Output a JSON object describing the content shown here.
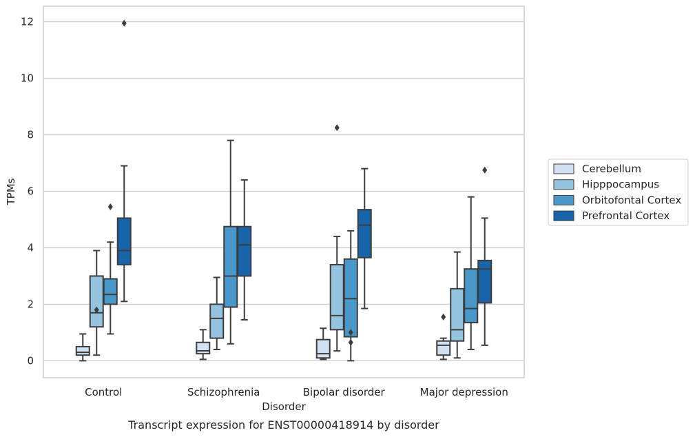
{
  "caption": "Transcript expression for ENST00000418914 by disorder",
  "chart_data": {
    "type": "box",
    "xlabel": "Disorder",
    "ylabel": "TPMs",
    "ylim": [
      -0.6,
      12.55
    ],
    "yticks": [
      0,
      2,
      4,
      6,
      8,
      10,
      12
    ],
    "grid": "horizontal",
    "legend_position": "right",
    "categories": [
      "Control",
      "Schizophrenia",
      "Bipolar disorder",
      "Major depression"
    ],
    "series": [
      {
        "name": "Cerebellum",
        "color": "#d0e1f2",
        "boxes": [
          {
            "whislo": 0.0,
            "q1": 0.2,
            "med": 0.3,
            "q3": 0.5,
            "whishi": 0.95,
            "fliers": []
          },
          {
            "whislo": 0.05,
            "q1": 0.25,
            "med": 0.35,
            "q3": 0.65,
            "whishi": 1.1,
            "fliers": []
          },
          {
            "whislo": 0.05,
            "q1": 0.1,
            "med": 0.25,
            "q3": 0.75,
            "whishi": 1.15,
            "fliers": []
          },
          {
            "whislo": 0.05,
            "q1": 0.2,
            "med": 0.55,
            "q3": 0.7,
            "whishi": 0.8,
            "fliers": [
              1.55
            ]
          }
        ]
      },
      {
        "name": "Hipppocampus",
        "color": "#94c4df",
        "boxes": [
          {
            "whislo": 0.2,
            "q1": 1.2,
            "med": 1.7,
            "q3": 3.0,
            "whishi": 3.9,
            "fliers": [
              1.8
            ]
          },
          {
            "whislo": 0.4,
            "q1": 0.8,
            "med": 1.5,
            "q3": 2.0,
            "whishi": 2.95,
            "fliers": []
          },
          {
            "whislo": 0.35,
            "q1": 1.1,
            "med": 1.6,
            "q3": 3.4,
            "whishi": 4.4,
            "fliers": [
              8.25
            ]
          },
          {
            "whislo": 0.1,
            "q1": 0.7,
            "med": 1.1,
            "q3": 2.55,
            "whishi": 3.85,
            "fliers": []
          }
        ]
      },
      {
        "name": "Orbitofontal Cortex",
        "color": "#4a98c9",
        "boxes": [
          {
            "whislo": 0.95,
            "q1": 2.0,
            "med": 2.35,
            "q3": 2.9,
            "whishi": 4.2,
            "fliers": [
              5.45
            ]
          },
          {
            "whislo": 0.6,
            "q1": 1.9,
            "med": 3.0,
            "q3": 4.75,
            "whishi": 7.8,
            "fliers": []
          },
          {
            "whislo": 0.0,
            "q1": 0.85,
            "med": 2.2,
            "q3": 3.6,
            "whishi": 4.6,
            "fliers": [
              1.0,
              0.65
            ]
          },
          {
            "whislo": 0.4,
            "q1": 1.35,
            "med": 1.85,
            "q3": 3.25,
            "whishi": 5.8,
            "fliers": []
          }
        ]
      },
      {
        "name": "Prefrontal Cortex",
        "color": "#1764ab",
        "boxes": [
          {
            "whislo": 2.1,
            "q1": 3.4,
            "med": 3.9,
            "q3": 5.05,
            "whishi": 6.9,
            "fliers": [
              11.95
            ]
          },
          {
            "whislo": 1.45,
            "q1": 3.0,
            "med": 4.1,
            "q3": 4.75,
            "whishi": 6.4,
            "fliers": []
          },
          {
            "whislo": 1.85,
            "q1": 3.65,
            "med": 4.8,
            "q3": 5.35,
            "whishi": 6.8,
            "fliers": []
          },
          {
            "whislo": 0.55,
            "q1": 2.05,
            "med": 3.25,
            "q3": 3.55,
            "whishi": 5.05,
            "fliers": [
              6.75
            ]
          }
        ]
      }
    ]
  }
}
